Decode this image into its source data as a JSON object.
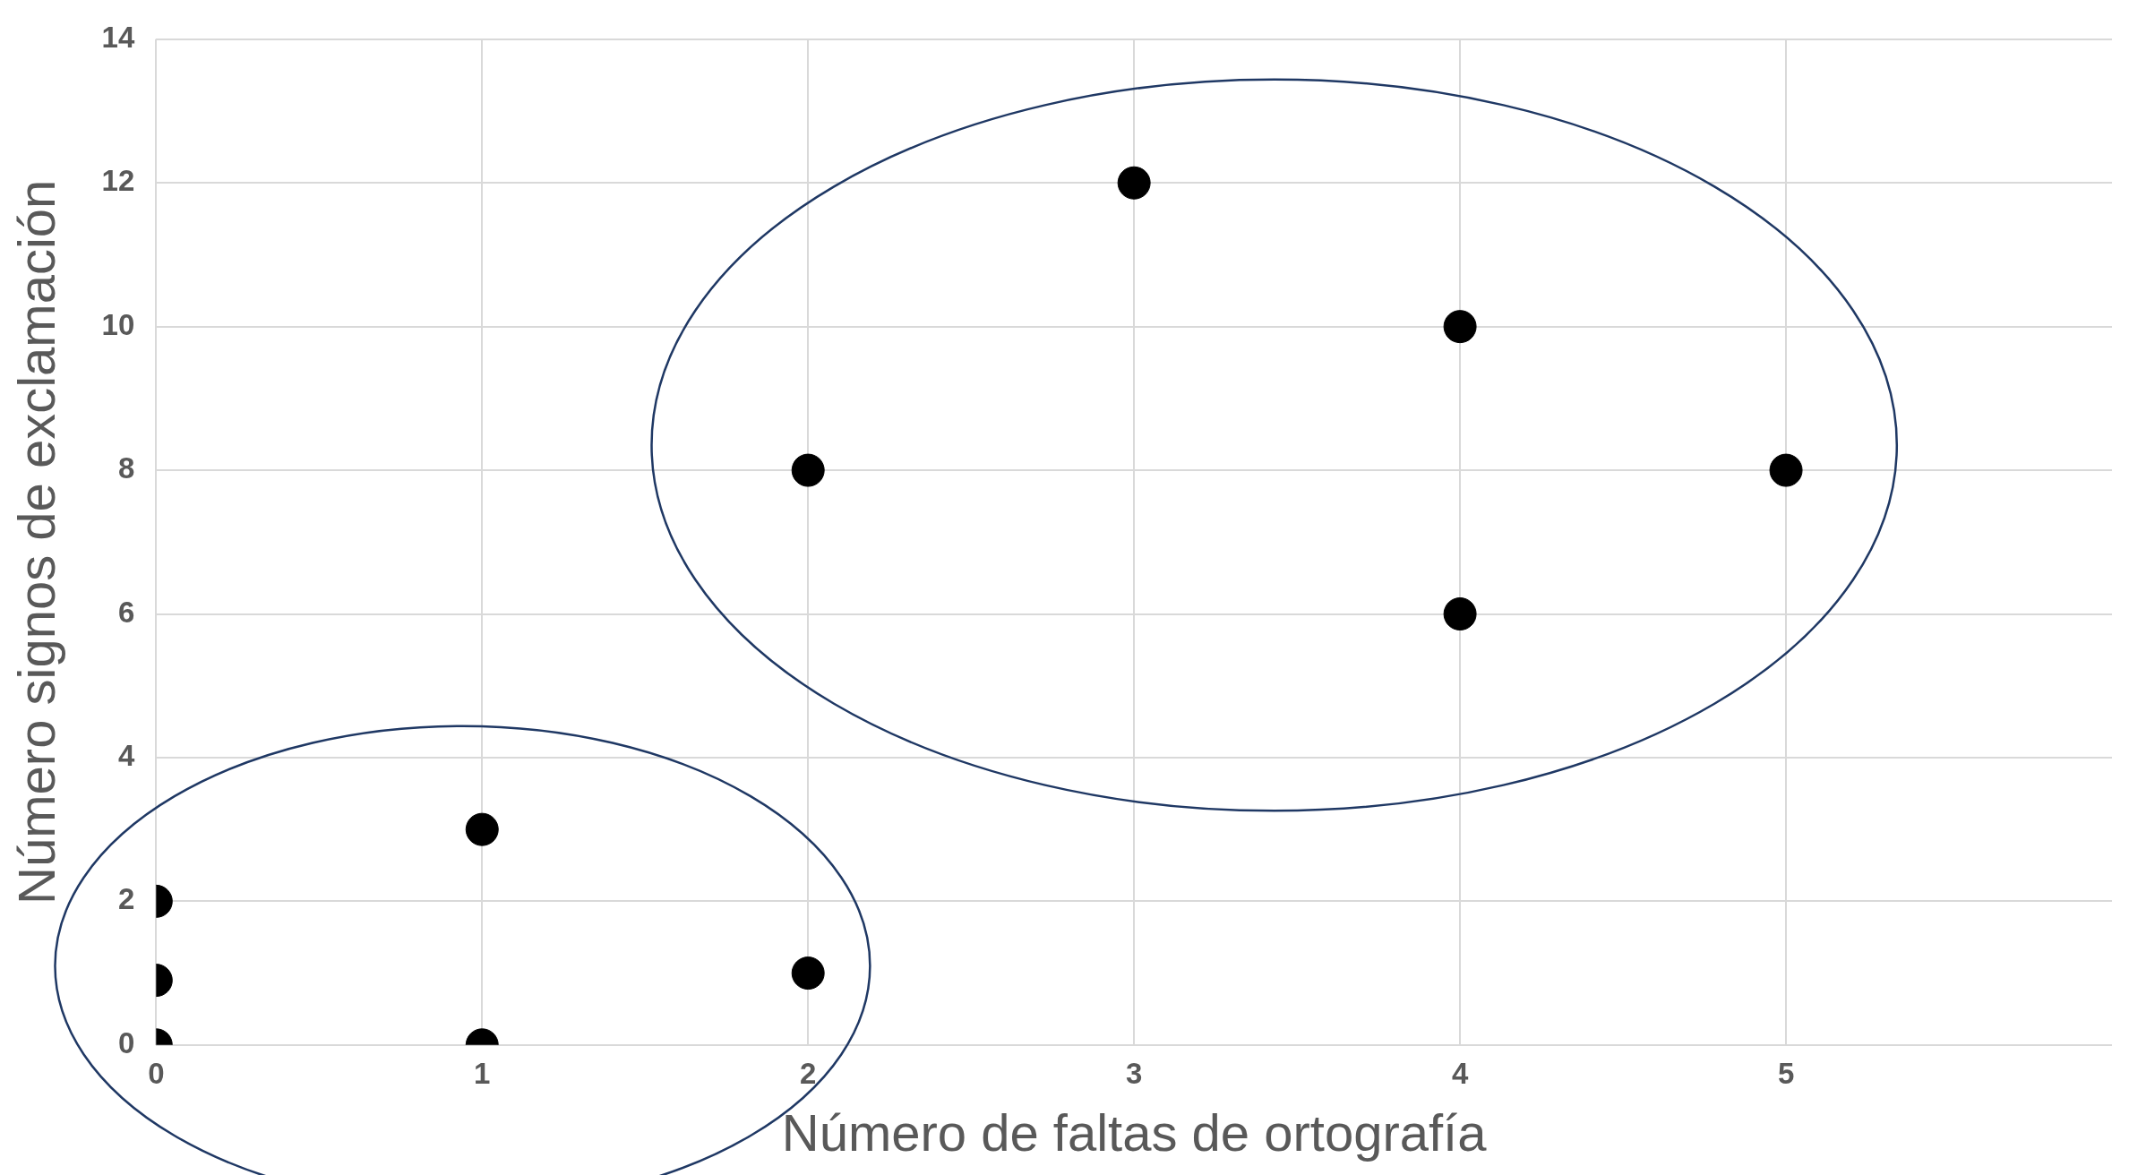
{
  "chart_data": {
    "type": "scatter",
    "xlabel": "Número de faltas de ortografía",
    "ylabel": "Número signos de exclamación",
    "x": [
      0,
      0,
      0,
      1,
      1,
      2,
      2,
      3,
      4,
      4,
      5
    ],
    "values": [
      0,
      0.9,
      2,
      3,
      0,
      1,
      8,
      12,
      10,
      6,
      8
    ],
    "color": "#000000",
    "xlim": [
      0,
      6
    ],
    "xticks": [
      0,
      1,
      2,
      3,
      4,
      5
    ],
    "ylim": [
      0,
      14
    ],
    "yticks": [
      0,
      2,
      4,
      6,
      8,
      10,
      12,
      14
    ],
    "grid": true,
    "legend": false,
    "marker": "circle"
  }
}
